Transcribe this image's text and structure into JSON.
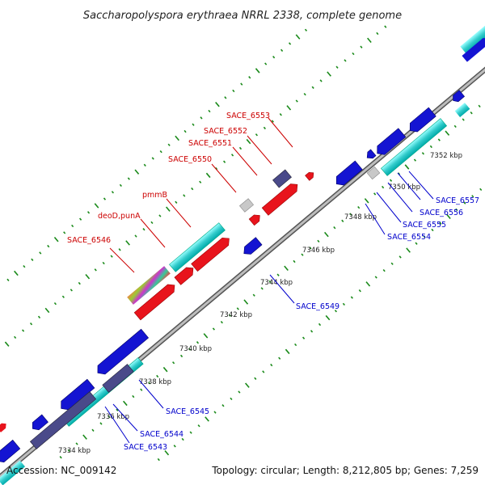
{
  "title": "Saccharopolyspora erythraea NRRL 2338, complete genome",
  "footer": {
    "accession": "Accession: NC_009142",
    "summary": "Topology: circular; Length: 8,212,805 bp; Genes: 7,259"
  },
  "ticks": [
    "7334 kbp",
    "7336 kbp",
    "7338 kbp",
    "7340 kbp",
    "7342 kbp",
    "7344 kbp",
    "7346 kbp",
    "7348 kbp",
    "7350 kbp",
    "7352 kbp"
  ],
  "labels_forward": [
    "SACE_6546",
    "deoD,punA",
    "pmmB",
    "SACE_6550",
    "SACE_6551",
    "SACE_6552",
    "SACE_6553"
  ],
  "labels_reverse": [
    "SACE_6543",
    "SACE_6544",
    "SACE_6545",
    "SACE_6549",
    "SACE_6554",
    "SACE_6555",
    "SACE_6556",
    "SACE_6557"
  ],
  "colors": {
    "backbone": "#8c8c8c",
    "forward": "#e8141c",
    "reverse": "#1414d2",
    "cds_cyan": "#33cccc",
    "rna_slate": "#4a4a8a",
    "grey": "#c8c8c8",
    "dots": "#1a8a1a",
    "label_forward": "#cc0000",
    "label_reverse": "#0000cc"
  }
}
